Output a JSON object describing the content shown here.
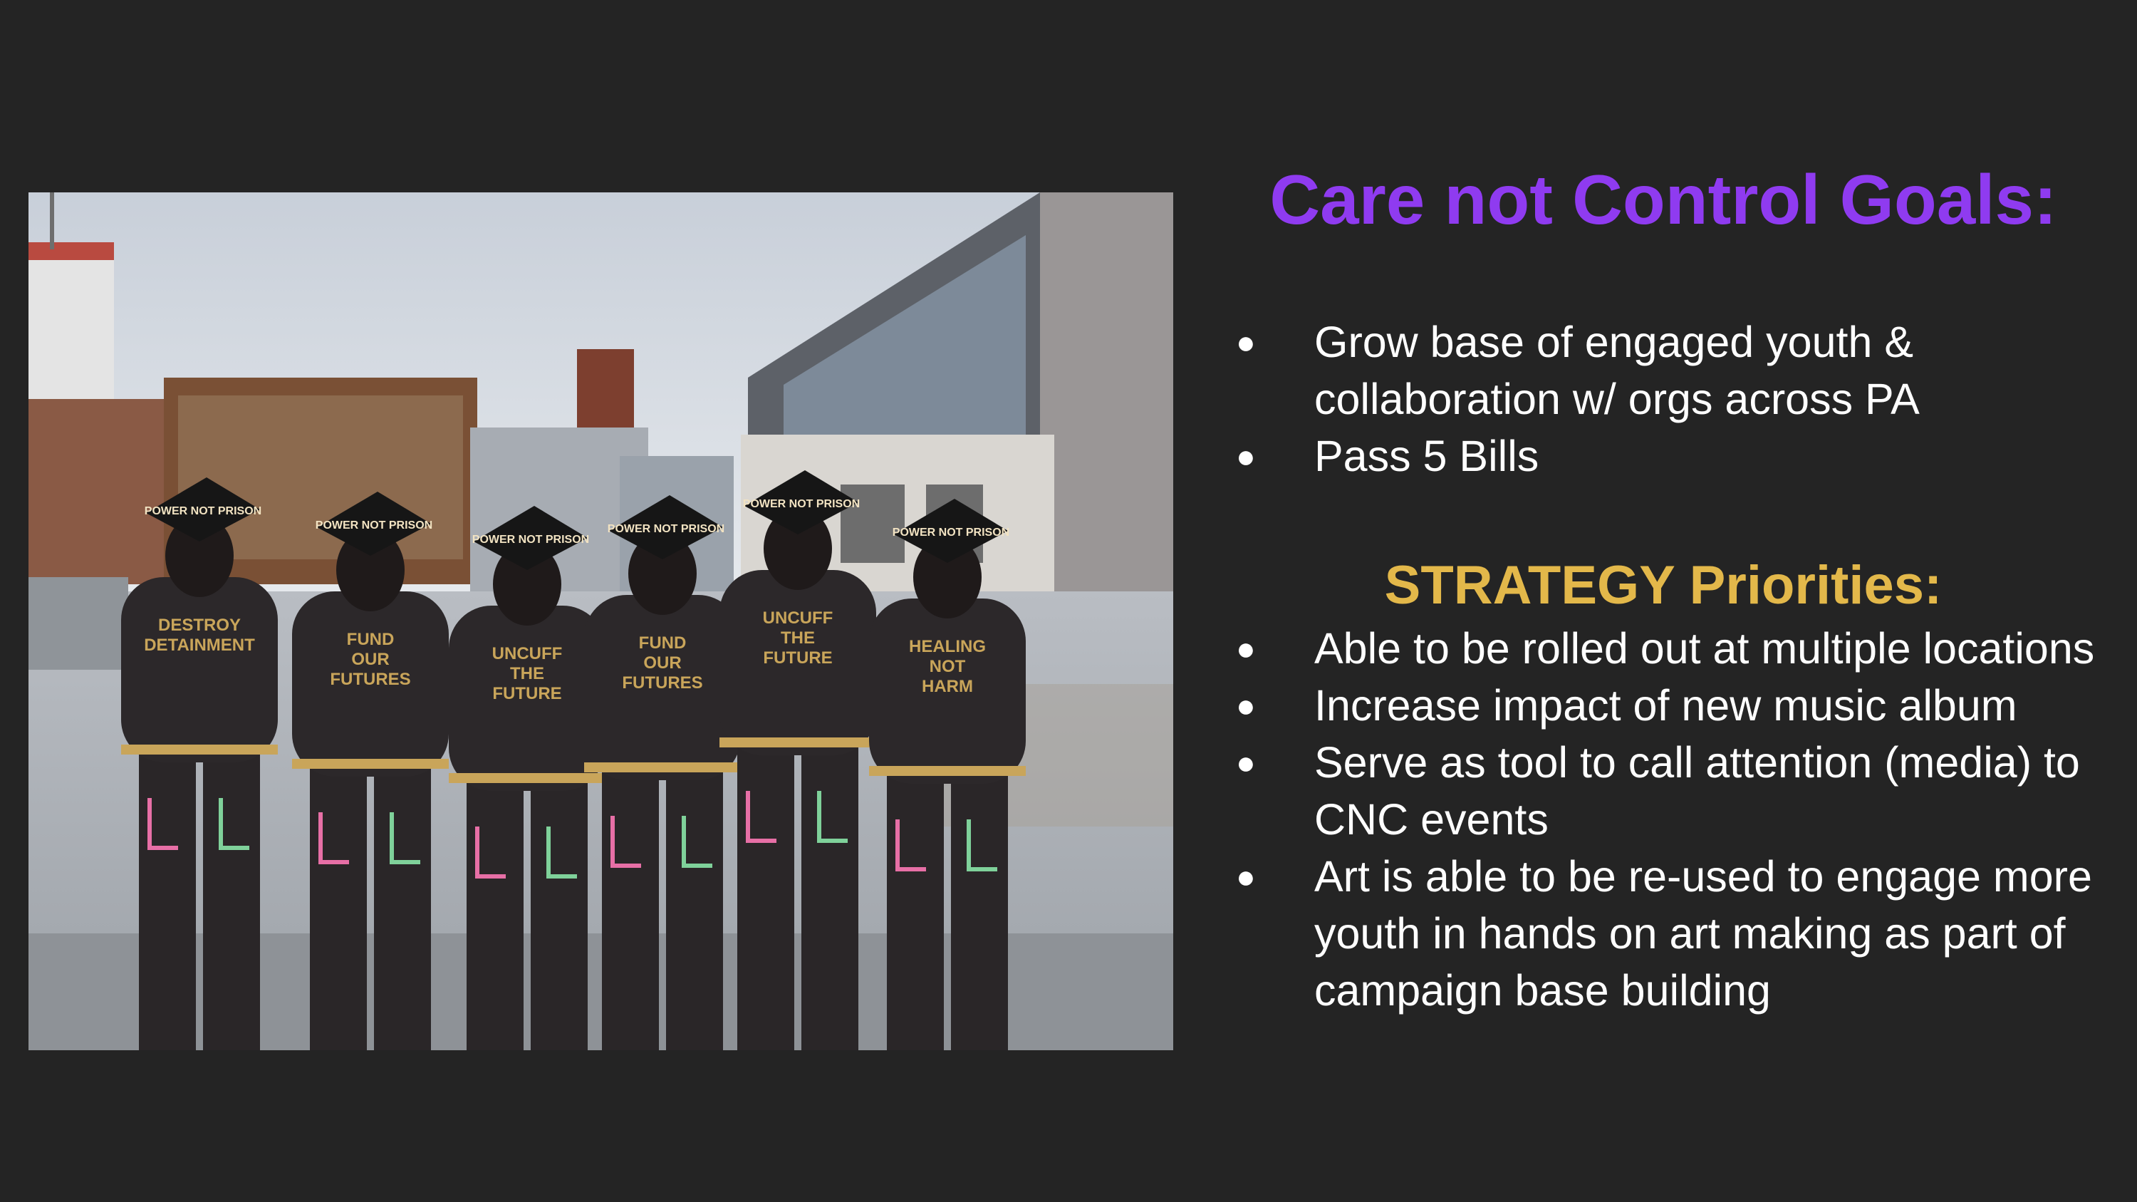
{
  "slide": {
    "title": "Care not Control Goals:",
    "title_color": "#8f3bf0",
    "subtitle_color": "#e3b84a",
    "background": "#242424"
  },
  "goals": [
    {
      "text": "Grow base of engaged youth & collaboration w/ orgs across PA"
    },
    {
      "text": "Pass 5 Bills"
    }
  ],
  "strategy": {
    "title": "STRATEGY Priorities:",
    "items": [
      {
        "text": "Able to be rolled out at multiple locations"
      },
      {
        "text": "Increase impact of new music album"
      },
      {
        "text": "Serve as tool to call attention (media) to CNC events"
      },
      {
        "text": "Art is able to be re-used to engage more youth in hands on art making as part of campaign base building"
      }
    ]
  },
  "bullet_glyph": "●",
  "photo": {
    "caps": [
      {
        "text": "POWER NOT PRISON"
      },
      {
        "text": "POWER NOT PRISON"
      },
      {
        "text": "POWER NOT PRISON"
      },
      {
        "text": "POWER NOT PRISON"
      },
      {
        "text": "POWER NOT PRISON"
      },
      {
        "text": "POWER NOT PRISON"
      }
    ],
    "jackets": [
      {
        "text": "DESTROY DETAINMENT"
      },
      {
        "text": "FUND OUR FUTURES"
      },
      {
        "text": "UNCUFF THE FUTURE"
      },
      {
        "text": "FUND OUR FUTURES"
      },
      {
        "text": "UNCUFF THE FUTURE"
      },
      {
        "text": "HEALING NOT HARM"
      }
    ]
  }
}
